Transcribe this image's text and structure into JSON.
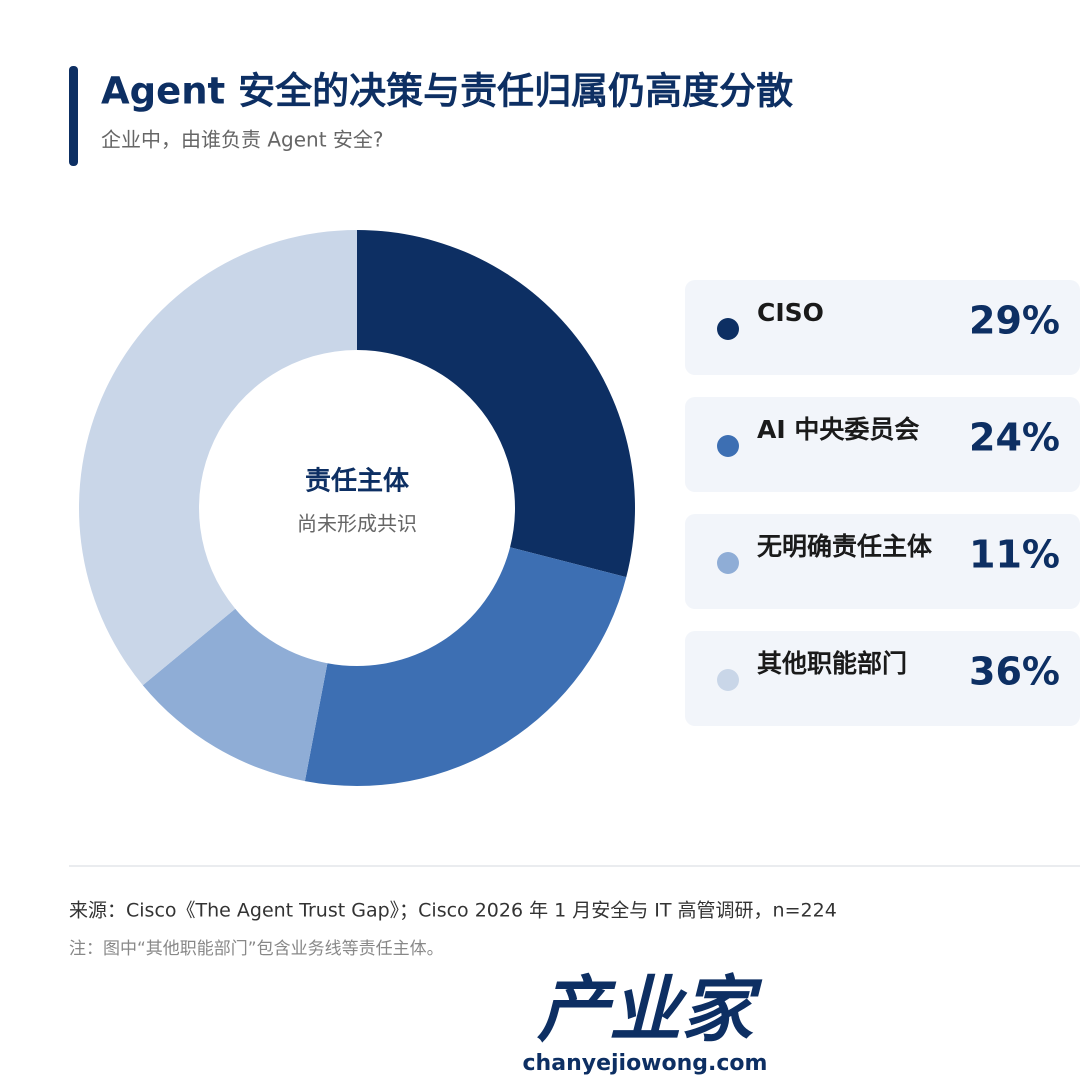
{
  "chart_data": {
    "type": "pie",
    "donut": true,
    "title": "Agent 安全的决策与责任归属仍高度分散",
    "subtitle": "企业中，由谁负责 Agent 安全?",
    "categories": [
      "CISO",
      "AI 中央委员会",
      "无明确责任主体",
      "其他职能部门"
    ],
    "values": [
      29,
      24,
      11,
      36
    ],
    "value_labels": [
      "29%",
      "24%",
      "11%",
      "36%"
    ],
    "colors": [
      "#0d2f63",
      "#3d6fb3",
      "#8fadd6",
      "#c9d6e8"
    ],
    "annotations": [
      "责任主体",
      "尚未形成共识"
    ]
  },
  "footer": {
    "source": "来源：Cisco《The Agent Trust Gap》；Cisco 2026 年 1 月安全与 IT 高管调研，n=224",
    "note": "注：图中“其他职能部门”包含业务线等责任主体。"
  },
  "logo": {
    "name": "产业家",
    "url": "chanyejiowong.com"
  }
}
